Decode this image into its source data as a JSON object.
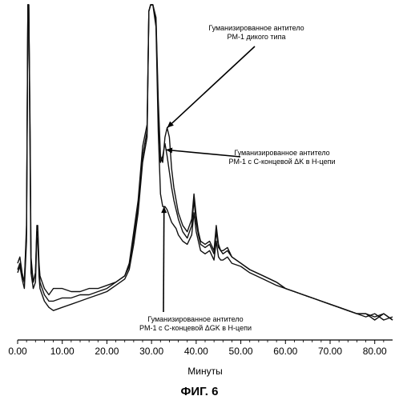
{
  "chart_data": {
    "type": "line",
    "title": "",
    "xlabel": "Минуты",
    "ylabel": "",
    "xlim": [
      0,
      84
    ],
    "x_ticks": [
      "0.00",
      "10.00",
      "20.00",
      "30.00",
      "40.00",
      "50.00",
      "60.00",
      "70.00",
      "80.00"
    ],
    "x_tick_values": [
      0,
      10,
      20,
      30,
      40,
      50,
      60,
      70,
      80
    ],
    "y_ticks_shown": false,
    "grid": false,
    "legend": "none",
    "series": [
      {
        "name": "Гуманизированное антитело PM-1 дикого типа",
        "x": [
          0,
          0.5,
          1,
          1.5,
          2,
          2.3,
          2.5,
          2.8,
          3,
          3.5,
          4,
          4.3,
          4.5,
          4.8,
          5,
          5.5,
          6,
          7,
          8,
          10,
          12,
          14,
          16,
          18,
          20,
          22,
          24,
          25,
          26,
          27,
          28,
          29,
          29.4,
          29.8,
          30.3,
          31,
          31.5,
          32,
          32.5,
          33,
          33.5,
          34,
          34.5,
          35,
          35.5,
          36,
          37,
          38,
          39,
          39.5,
          40,
          40.5,
          41,
          42,
          43,
          44,
          44.5,
          45,
          45.5,
          46,
          47,
          48,
          50,
          52,
          55,
          58,
          60,
          62,
          64,
          66,
          68,
          70,
          72,
          74,
          76,
          78,
          80,
          82,
          84
        ],
        "y": [
          0.18,
          0.2,
          0.15,
          0.12,
          0.3,
          1.02,
          1.02,
          0.6,
          0.2,
          0.12,
          0.15,
          0.3,
          0.3,
          0.18,
          0.14,
          0.12,
          0.1,
          0.08,
          0.1,
          0.1,
          0.09,
          0.09,
          0.1,
          0.1,
          0.11,
          0.12,
          0.14,
          0.18,
          0.28,
          0.38,
          0.55,
          0.62,
          0.98,
          1.02,
          1.02,
          0.96,
          0.7,
          0.52,
          0.5,
          0.58,
          0.61,
          0.58,
          0.48,
          0.42,
          0.38,
          0.34,
          0.3,
          0.28,
          0.32,
          0.4,
          0.33,
          0.28,
          0.25,
          0.24,
          0.25,
          0.22,
          0.3,
          0.24,
          0.22,
          0.22,
          0.23,
          0.2,
          0.18,
          0.16,
          0.14,
          0.12,
          0.1,
          0.09,
          0.08,
          0.07,
          0.06,
          0.05,
          0.04,
          0.03,
          0.02,
          0.02,
          0.0,
          0.02,
          0.0
        ]
      },
      {
        "name": "Гуманизированное антитело PM-1 с C-концевой ΔK в H-цепи",
        "x": [
          0,
          0.5,
          1,
          1.5,
          2,
          2.3,
          2.5,
          2.8,
          3,
          3.5,
          4,
          4.3,
          4.5,
          4.8,
          5,
          5.5,
          6,
          7,
          8,
          10,
          12,
          14,
          16,
          18,
          20,
          22,
          24,
          25,
          26,
          27,
          28,
          29,
          29.4,
          29.8,
          30.3,
          31,
          31.5,
          32,
          32.5,
          33,
          33.5,
          34,
          34.5,
          35,
          35.5,
          36,
          37,
          38,
          39,
          39.5,
          40,
          40.5,
          41,
          42,
          43,
          44,
          44.5,
          45,
          45.5,
          46,
          47,
          48,
          50,
          52,
          55,
          58,
          60,
          62,
          64,
          66,
          68,
          70,
          72,
          74,
          76,
          78,
          80,
          82,
          84
        ],
        "y": [
          0.16,
          0.18,
          0.14,
          0.12,
          0.28,
          1.02,
          1.02,
          0.55,
          0.18,
          0.12,
          0.15,
          0.28,
          0.28,
          0.16,
          0.12,
          0.1,
          0.08,
          0.06,
          0.06,
          0.07,
          0.07,
          0.08,
          0.08,
          0.09,
          0.1,
          0.12,
          0.14,
          0.17,
          0.26,
          0.36,
          0.52,
          0.6,
          0.98,
          1.02,
          1.02,
          0.95,
          0.66,
          0.5,
          0.52,
          0.56,
          0.52,
          0.47,
          0.42,
          0.38,
          0.35,
          0.32,
          0.28,
          0.26,
          0.3,
          0.38,
          0.31,
          0.27,
          0.24,
          0.23,
          0.24,
          0.21,
          0.28,
          0.23,
          0.22,
          0.21,
          0.22,
          0.2,
          0.18,
          0.16,
          0.14,
          0.12,
          0.1,
          0.09,
          0.08,
          0.07,
          0.06,
          0.05,
          0.04,
          0.03,
          0.02,
          0.01,
          0.02,
          0.0,
          0.01
        ]
      },
      {
        "name": "Гуманизированное антитело PM-1 с C-концевой ΔGK в H-цепи",
        "x": [
          0,
          0.5,
          1,
          1.5,
          2,
          2.3,
          2.5,
          2.8,
          3,
          3.5,
          4,
          4.3,
          4.5,
          4.8,
          5,
          5.5,
          6,
          7,
          8,
          10,
          12,
          14,
          16,
          18,
          20,
          22,
          24,
          25,
          26,
          27,
          28,
          29,
          29.4,
          29.8,
          30.3,
          31,
          31.5,
          32,
          32.5,
          33,
          33.5,
          34,
          34.5,
          35,
          35.5,
          36,
          37,
          38,
          39,
          39.5,
          40,
          40.5,
          41,
          42,
          43,
          44,
          44.5,
          45,
          45.5,
          46,
          47,
          48,
          50,
          52,
          55,
          58,
          60,
          62,
          64,
          66,
          68,
          70,
          72,
          74,
          76,
          78,
          80,
          82,
          84
        ],
        "y": [
          0.15,
          0.17,
          0.13,
          0.1,
          0.25,
          1.02,
          1.02,
          0.5,
          0.15,
          0.1,
          0.12,
          0.26,
          0.26,
          0.14,
          0.1,
          0.08,
          0.06,
          0.04,
          0.03,
          0.04,
          0.05,
          0.06,
          0.07,
          0.08,
          0.09,
          0.11,
          0.13,
          0.16,
          0.24,
          0.34,
          0.5,
          0.58,
          0.98,
          1.02,
          1.02,
          0.93,
          0.6,
          0.4,
          0.36,
          0.36,
          0.35,
          0.33,
          0.31,
          0.3,
          0.29,
          0.27,
          0.25,
          0.24,
          0.27,
          0.34,
          0.28,
          0.25,
          0.22,
          0.21,
          0.22,
          0.19,
          0.25,
          0.2,
          0.19,
          0.19,
          0.2,
          0.18,
          0.17,
          0.15,
          0.13,
          0.11,
          0.1,
          0.09,
          0.08,
          0.07,
          0.06,
          0.05,
          0.04,
          0.03,
          0.02,
          0.02,
          0.01,
          0.02,
          0.0
        ]
      }
    ],
    "annotations": [
      {
        "line1": "Гуманизированное антитело",
        "line2": "PM-1 дикого типа",
        "arrow_target": [
          33.5,
          0.61
        ]
      },
      {
        "line1": "Гуманизированное антитело",
        "line2": "PM-1 с C-концевой ΔK в H-цепи",
        "arrow_target": [
          33.2,
          0.54
        ]
      },
      {
        "line1": "Гуманизированное антитело",
        "line2": "PM-1 с C-концевой ΔGK в H-цепи",
        "arrow_target": [
          32.8,
          0.36
        ]
      }
    ]
  },
  "figure_label": "ФИГ. 6"
}
